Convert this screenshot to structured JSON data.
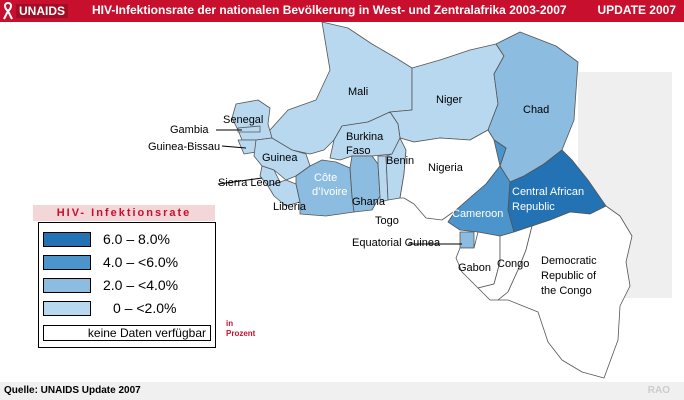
{
  "header": {
    "logo_text": "UNAIDS",
    "title": "HIV-Infektionsrate der nationalen Bevölkerung in West- und Zentralafrika 2003-2007",
    "update": "UPDATE 2007"
  },
  "colors": {
    "header_red": "#c8102e",
    "level_6_8": "#2272b4",
    "level_4_6": "#4c95cc",
    "level_2_4": "#8cbde0",
    "level_0_2": "#b8d8f0",
    "no_data": "#ffffff"
  },
  "countries": {
    "mali": "Mali",
    "niger": "Niger",
    "chad": "Chad",
    "senegal": "Senegal",
    "gambia": "Gambia",
    "guinea_bissau": "Guinea-Bissau",
    "guinea": "Guinea",
    "sierra_leone": "Sierra Leone",
    "liberia": "Liberia",
    "burkina_faso_1": "Burkina",
    "burkina_faso_2": "Faso",
    "benin": "Benin",
    "nigeria": "Nigeria",
    "cote_1": "Côte",
    "cote_2": "d’Ivoire",
    "ghana": "Ghana",
    "togo": "Togo",
    "cameroon": "Cameroon",
    "car_1": "Central African",
    "car_2": "Republic",
    "eq_guinea": "Equatorial Guinea",
    "gabon": "Gabon",
    "congo": "Congo",
    "drc_1": "Democratic",
    "drc_2": "Republic of",
    "drc_3": "the Congo"
  },
  "legend": {
    "title": "HIV- Infektionsrate",
    "items": [
      {
        "label": "6.0 – 8.0%"
      },
      {
        "label": "4.0 – <6.0%"
      },
      {
        "label": "2.0 – <4.0%"
      },
      {
        "label": "0 – <2.0%"
      }
    ],
    "no_data": "keine Daten verfügbar",
    "unit_1": "in",
    "unit_2": "Prozent"
  },
  "footer": {
    "source": "Quelle: UNAIDS Update 2007",
    "credit": "RAO"
  }
}
